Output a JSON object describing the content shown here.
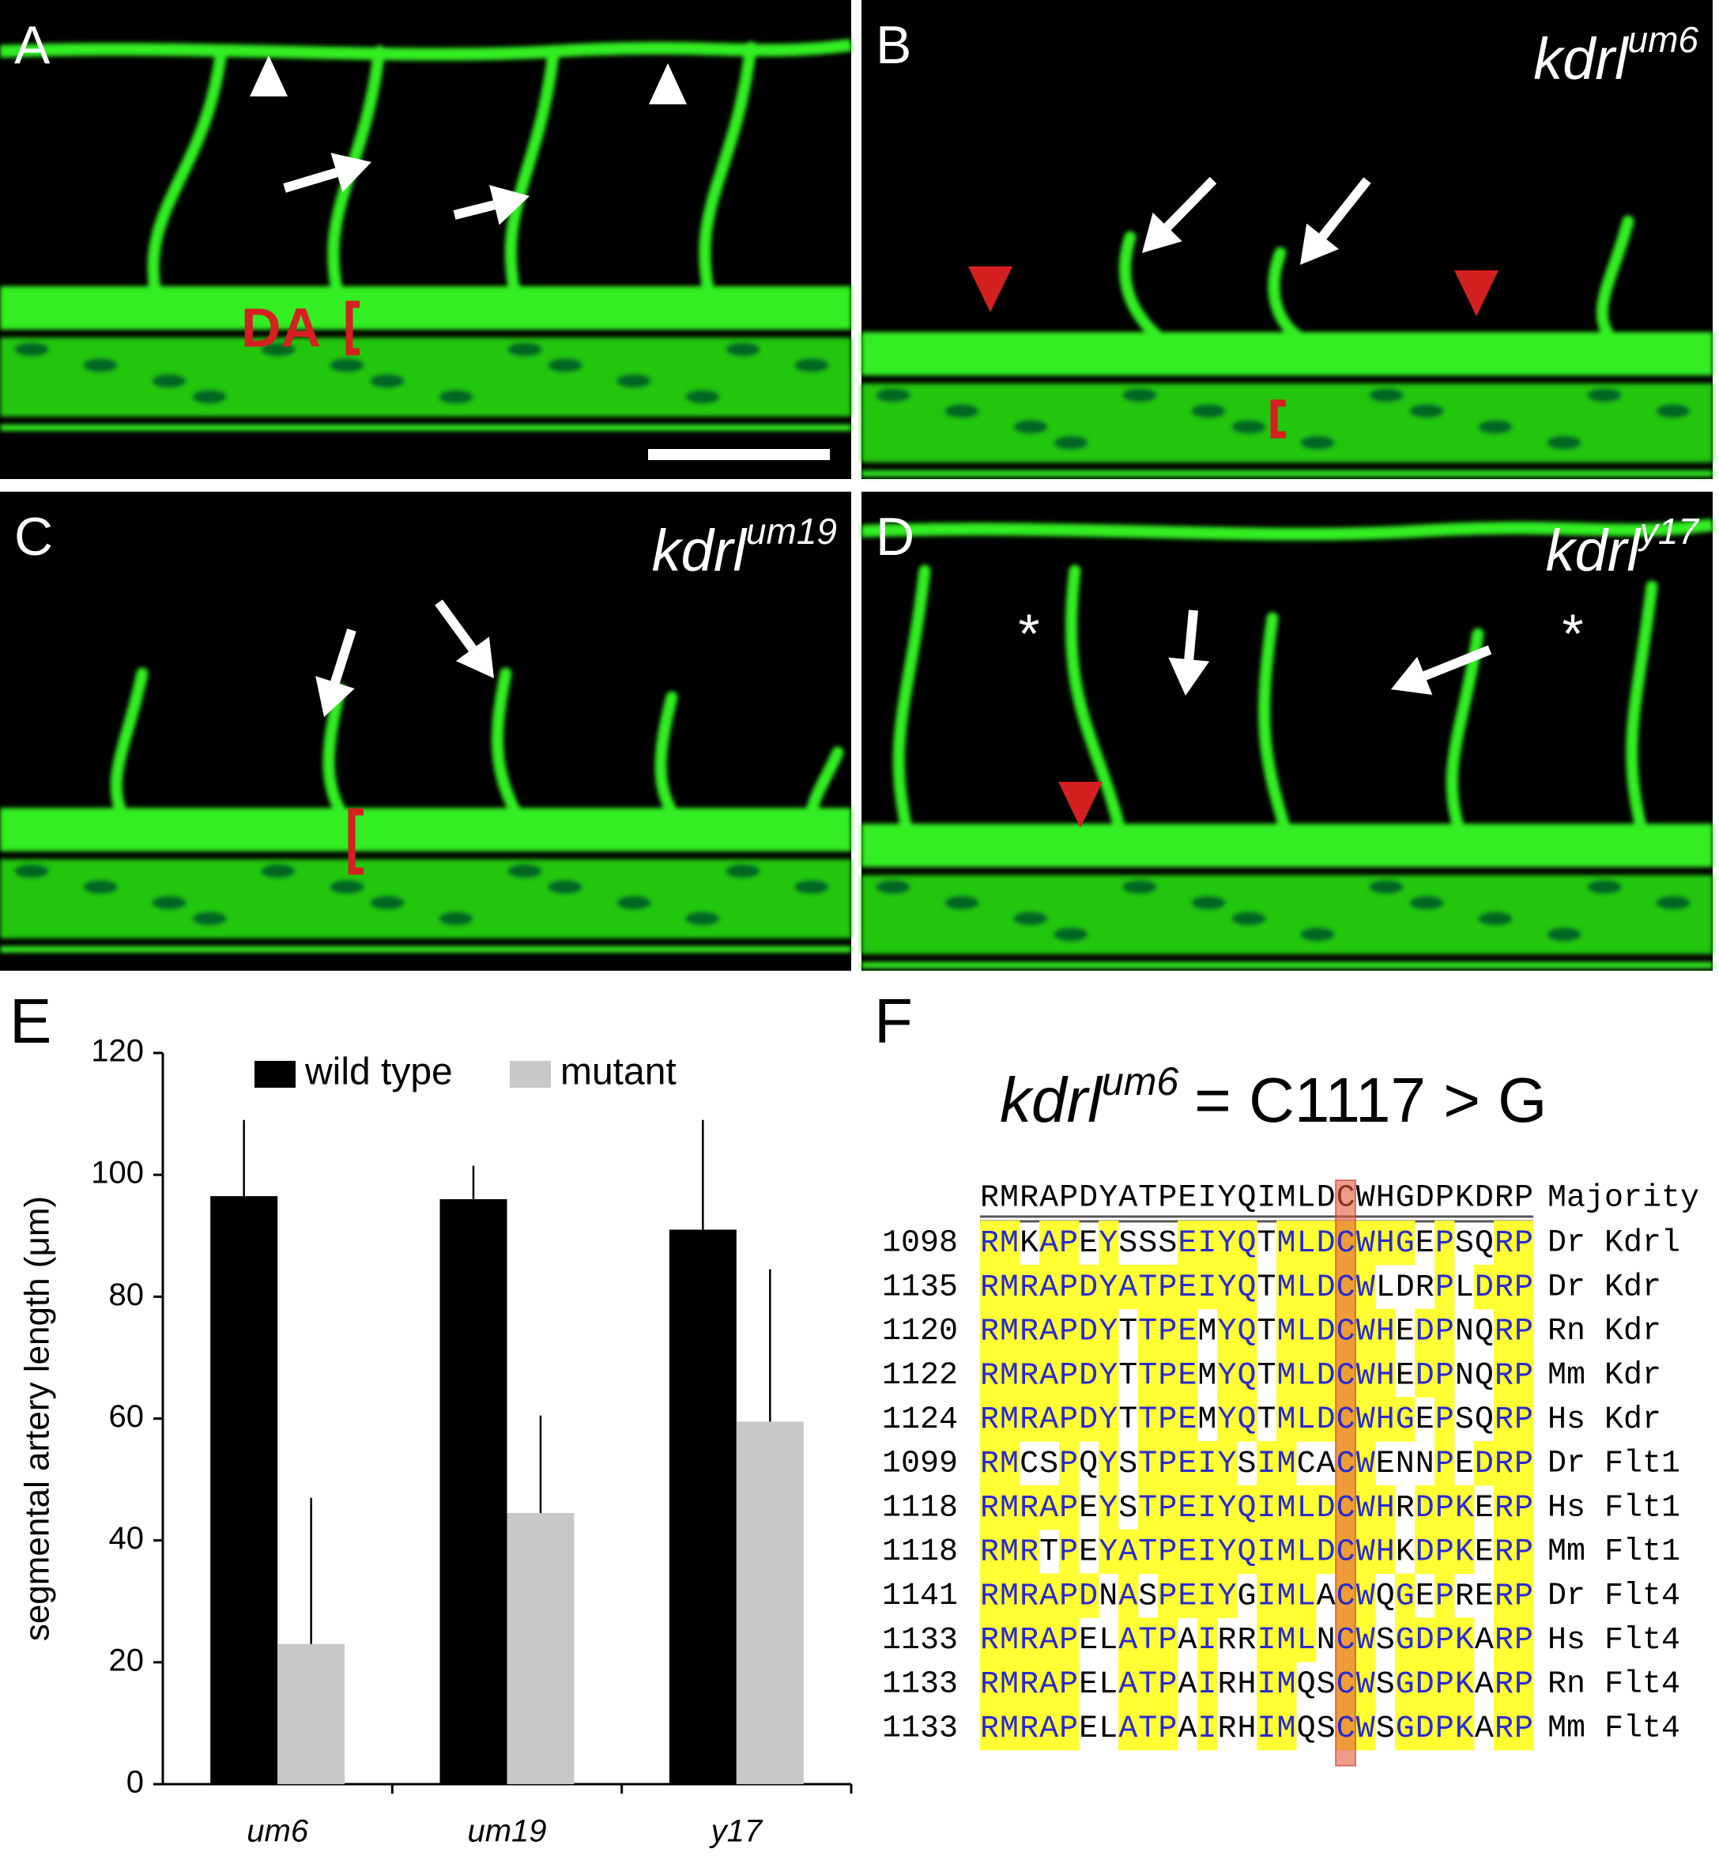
{
  "panels": [
    {
      "label": "A",
      "annotation": "DA"
    },
    {
      "label": "B",
      "genotype": {
        "gene": "kdrl",
        "allele": "um6"
      }
    },
    {
      "label": "C",
      "genotype": {
        "gene": "kdrl",
        "allele": "um19"
      }
    },
    {
      "label": "D",
      "genotype": {
        "gene": "kdrl",
        "allele": "y17"
      },
      "marker": "*"
    }
  ],
  "chart_data": {
    "type": "bar",
    "panel_label": "E",
    "y_label": "segmental artery length (μm)",
    "categories": [
      "um6",
      "um19",
      "y17"
    ],
    "series": [
      {
        "name": "wild type",
        "color": "#000000",
        "values": [
          96.5,
          96,
          91
        ],
        "errors": [
          12.5,
          5.5,
          18
        ]
      },
      {
        "name": "mutant",
        "color": "#c8c8c8",
        "values": [
          23,
          44.5,
          59.5
        ],
        "errors": [
          24,
          16,
          25
        ]
      }
    ],
    "ylim": [
      0,
      120
    ],
    "yticks": [
      0,
      20,
      40,
      60,
      80,
      100,
      120
    ]
  },
  "alignment": {
    "panel_label": "F",
    "title": {
      "gene": "kdrl",
      "allele": "um6",
      "text": "= C1117 > G"
    },
    "majority": {
      "sequence": "RMRAPDYATPEIYQIMLDCWHGDPKDRP",
      "label": "Majority"
    },
    "rows": [
      {
        "start": "1098",
        "sequence": "RMKAPEYSSSEIYQTMLDCWHGEPSQRP",
        "species": "Dr Kdrl"
      },
      {
        "start": "1135",
        "sequence": "RMRAPDYATPEIYQTMLDCWLDRPLDRP",
        "species": "Dr Kdr"
      },
      {
        "start": "1120",
        "sequence": "RMRAPDYTTPEMYQTMLDCWHEDPNQRP",
        "species": "Rn Kdr"
      },
      {
        "start": "1122",
        "sequence": "RMRAPDYTTPEMYQTMLDCWHEDPNQRP",
        "species": "Mm Kdr"
      },
      {
        "start": "1124",
        "sequence": "RMRAPDYTTPEMYQTMLDCWHGEPSQRP",
        "species": "Hs Kdr"
      },
      {
        "start": "1099",
        "sequence": "RMCSPQYSTPEIYSIMCACWENNPEDRP",
        "species": "Dr Flt1"
      },
      {
        "start": "1118",
        "sequence": "RMRAPEYSTPEIYQIMLDCWHRDPKERP",
        "species": "Hs Flt1"
      },
      {
        "start": "1118",
        "sequence": "RMRTPEYATPEIYQIMLDCWHKDPKERP",
        "species": "Mm Flt1"
      },
      {
        "start": "1141",
        "sequence": "RMRAPDNASPEIYGIMLACWQGEPRERP",
        "species": "Dr Flt4"
      },
      {
        "start": "1133",
        "sequence": "RMRAPELATPAIRRIMLNCWSGDPKARP",
        "species": "Hs Flt4"
      },
      {
        "start": "1133",
        "sequence": "RMRAPELATPAIRHIMQSCWSGDPKARP",
        "species": "Rn Flt4"
      },
      {
        "start": "1133",
        "sequence": "RMRAPELATPAIRHIMQSCWSGDPKARP",
        "species": "Mm Flt4"
      }
    ]
  }
}
